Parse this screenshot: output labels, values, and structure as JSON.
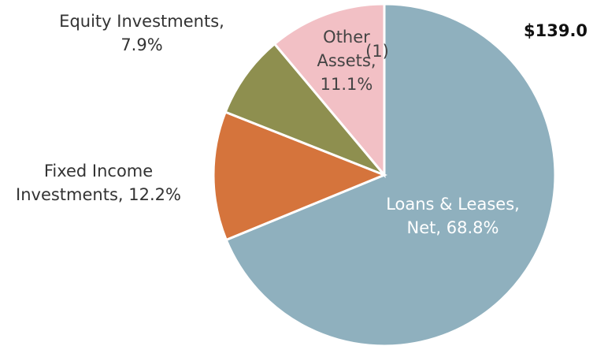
{
  "chart_data": {
    "type": "pie",
    "title": "$139.0",
    "labels": [
      [
        "Loans & Leases,",
        "Net, 68.8%"
      ],
      [
        "Fixed Income",
        "Investments, 12.2%"
      ],
      [
        "Equity Investments,",
        "7.9%"
      ],
      [
        "Other",
        "Assets,",
        "11.1%"
      ]
    ],
    "values": [
      68.8,
      12.2,
      7.9,
      11.1
    ],
    "colors": [
      "#8fb0be",
      "#d5743c",
      "#8e8f4f",
      "#f2c0c5"
    ],
    "annotation": "(1)"
  }
}
